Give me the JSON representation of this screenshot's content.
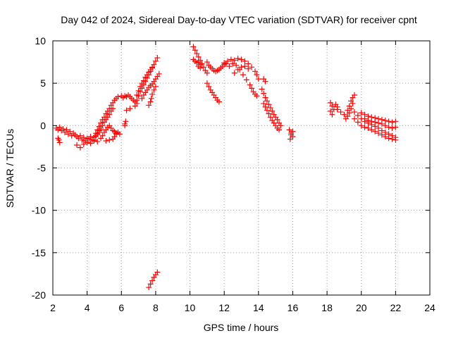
{
  "chart_data": {
    "type": "scatter",
    "title": "Day 042 of 2024, Sidereal Day-to-day VTEC variation (SDTVAR) for receiver cpnt",
    "xlabel": "GPS time / hours",
    "ylabel": "SDTVAR / TECUs",
    "xlim": [
      2,
      24
    ],
    "ylim": [
      -20,
      10
    ],
    "xticks": [
      2,
      4,
      6,
      8,
      10,
      12,
      14,
      16,
      18,
      20,
      22,
      24
    ],
    "yticks": [
      -20,
      -15,
      -10,
      -5,
      0,
      5,
      10
    ],
    "xtick_labels": [
      "2",
      "4",
      "6",
      "8",
      "10",
      "12",
      "14",
      "16",
      "18",
      "20",
      "22",
      "24"
    ],
    "ytick_labels": [
      "-20",
      "-15",
      "-10",
      "-5",
      "0",
      "5",
      "10"
    ],
    "grid": true,
    "marker": "+",
    "color": "#ff0000",
    "series": [
      {
        "name": "SDTVAR",
        "points": [
          [
            2.2,
            -0.3
          ],
          [
            2.3,
            -0.5
          ],
          [
            2.4,
            -0.2
          ],
          [
            2.5,
            -0.6
          ],
          [
            2.6,
            -0.4
          ],
          [
            2.7,
            -0.8
          ],
          [
            2.8,
            -0.5
          ],
          [
            2.9,
            -1.0
          ],
          [
            3.0,
            -0.7
          ],
          [
            3.1,
            -1.2
          ],
          [
            3.2,
            -0.9
          ],
          [
            3.3,
            -1.1
          ],
          [
            3.4,
            -1.3
          ],
          [
            3.5,
            -1.5
          ],
          [
            3.6,
            -1.2
          ],
          [
            3.7,
            -1.7
          ],
          [
            3.8,
            -1.4
          ],
          [
            3.9,
            -1.8
          ],
          [
            4.0,
            -1.5
          ],
          [
            4.1,
            -1.6
          ],
          [
            4.2,
            -1.3
          ],
          [
            4.3,
            -1.7
          ],
          [
            4.4,
            -1.4
          ],
          [
            4.5,
            -1.2
          ],
          [
            4.6,
            -1.0
          ],
          [
            4.7,
            -0.8
          ],
          [
            4.8,
            -0.5
          ],
          [
            2.3,
            -1.5
          ],
          [
            2.4,
            -2.0
          ],
          [
            2.35,
            -1.7
          ],
          [
            3.4,
            -2.3
          ],
          [
            3.6,
            -2.6
          ],
          [
            3.8,
            -2.2
          ],
          [
            4.0,
            -2.0
          ],
          [
            4.2,
            -2.1
          ],
          [
            4.4,
            -1.8
          ],
          [
            4.6,
            -1.9
          ],
          [
            4.5,
            -0.9
          ],
          [
            4.6,
            -0.5
          ],
          [
            4.7,
            -0.1
          ],
          [
            4.8,
            0.3
          ],
          [
            4.9,
            0.7
          ],
          [
            5.0,
            1.0
          ],
          [
            5.1,
            1.4
          ],
          [
            5.2,
            1.7
          ],
          [
            5.3,
            2.0
          ],
          [
            5.4,
            2.4
          ],
          [
            5.5,
            2.7
          ],
          [
            5.6,
            3.0
          ],
          [
            5.7,
            3.2
          ],
          [
            5.8,
            3.4
          ],
          [
            4.4,
            -1.7
          ],
          [
            4.5,
            -1.3
          ],
          [
            4.6,
            -1.0
          ],
          [
            4.7,
            -0.6
          ],
          [
            4.8,
            -0.3
          ],
          [
            4.9,
            0.0
          ],
          [
            5.0,
            0.4
          ],
          [
            5.1,
            0.7
          ],
          [
            5.2,
            1.0
          ],
          [
            5.3,
            1.3
          ],
          [
            5.4,
            1.7
          ],
          [
            5.5,
            2.0
          ],
          [
            4.8,
            -1.5
          ],
          [
            4.9,
            -1.2
          ],
          [
            5.0,
            -0.8
          ],
          [
            5.1,
            -0.5
          ],
          [
            5.2,
            -0.2
          ],
          [
            5.3,
            0.0
          ],
          [
            5.4,
            -0.3
          ],
          [
            5.5,
            -0.6
          ],
          [
            5.6,
            -0.7
          ],
          [
            5.7,
            -0.9
          ],
          [
            5.8,
            -0.8
          ],
          [
            5.9,
            -1.0
          ],
          [
            5.5,
            -1.6
          ],
          [
            5.6,
            -1.3
          ],
          [
            5.7,
            -1.0
          ],
          [
            5.3,
            -1.7
          ],
          [
            5.1,
            -1.8
          ],
          [
            6.0,
            3.5
          ],
          [
            6.2,
            3.5
          ],
          [
            6.3,
            3.4
          ],
          [
            6.4,
            3.6
          ],
          [
            6.1,
            3.3
          ],
          [
            6.5,
            3.4
          ],
          [
            6.6,
            3.2
          ],
          [
            6.7,
            3.0
          ],
          [
            6.8,
            2.8
          ],
          [
            6.9,
            2.6
          ],
          [
            6.8,
            2.3
          ],
          [
            6.5,
            2.0
          ],
          [
            6.3,
            1.8
          ],
          [
            6.2,
            0.2
          ],
          [
            6.25,
            0.5
          ],
          [
            6.2,
            0.0
          ],
          [
            6.9,
            3.0
          ],
          [
            7.0,
            3.5
          ],
          [
            7.1,
            4.0
          ],
          [
            7.2,
            4.4
          ],
          [
            7.3,
            4.8
          ],
          [
            7.4,
            5.2
          ],
          [
            7.5,
            5.6
          ],
          [
            7.6,
            6.0
          ],
          [
            7.7,
            6.4
          ],
          [
            7.8,
            6.8
          ],
          [
            7.9,
            7.2
          ],
          [
            8.0,
            7.6
          ],
          [
            8.1,
            8.0
          ],
          [
            6.9,
            3.6
          ],
          [
            7.0,
            4.1
          ],
          [
            7.1,
            4.6
          ],
          [
            7.2,
            5.0
          ],
          [
            7.3,
            5.3
          ],
          [
            7.4,
            5.7
          ],
          [
            7.5,
            6.0
          ],
          [
            7.6,
            6.3
          ],
          [
            7.7,
            6.6
          ],
          [
            7.8,
            6.9
          ],
          [
            7.2,
            3.2
          ],
          [
            7.3,
            3.6
          ],
          [
            7.4,
            3.9
          ],
          [
            7.5,
            4.2
          ],
          [
            7.6,
            4.5
          ],
          [
            7.7,
            4.7
          ],
          [
            7.8,
            4.9
          ],
          [
            7.9,
            5.2
          ],
          [
            8.0,
            5.5
          ],
          [
            8.1,
            5.8
          ],
          [
            8.2,
            6.1
          ],
          [
            7.6,
            2.4
          ],
          [
            7.7,
            2.8
          ],
          [
            7.75,
            3.2
          ],
          [
            7.8,
            3.7
          ],
          [
            7.9,
            4.2
          ],
          [
            8.0,
            4.6
          ],
          [
            7.6,
            -19.1
          ],
          [
            7.7,
            -18.7
          ],
          [
            7.8,
            -18.3
          ],
          [
            7.9,
            -17.9
          ],
          [
            8.0,
            -17.6
          ],
          [
            8.1,
            -17.3
          ],
          [
            10.2,
            9.3
          ],
          [
            10.3,
            8.9
          ],
          [
            10.4,
            8.5
          ],
          [
            10.5,
            8.1
          ],
          [
            10.6,
            7.7
          ],
          [
            10.7,
            7.3
          ],
          [
            10.8,
            6.9
          ],
          [
            10.9,
            6.5
          ],
          [
            11.0,
            6.2
          ],
          [
            10.5,
            7.5
          ],
          [
            10.6,
            7.2
          ],
          [
            10.2,
            7.8
          ],
          [
            10.3,
            7.6
          ],
          [
            10.4,
            7.4
          ],
          [
            10.5,
            7.0
          ],
          [
            10.6,
            6.8
          ],
          [
            11.0,
            7.5
          ],
          [
            11.1,
            7.1
          ],
          [
            11.2,
            6.9
          ],
          [
            11.3,
            6.7
          ],
          [
            11.4,
            6.5
          ],
          [
            11.5,
            6.4
          ],
          [
            11.6,
            6.5
          ],
          [
            11.7,
            6.6
          ],
          [
            11.8,
            6.8
          ],
          [
            11.9,
            7.0
          ],
          [
            12.0,
            7.2
          ],
          [
            12.1,
            7.3
          ],
          [
            11.0,
            5.0
          ],
          [
            11.1,
            4.6
          ],
          [
            11.2,
            4.2
          ],
          [
            11.3,
            3.9
          ],
          [
            11.4,
            3.6
          ],
          [
            11.5,
            3.3
          ],
          [
            11.6,
            3.0
          ],
          [
            11.7,
            2.8
          ],
          [
            12.0,
            7.4
          ],
          [
            12.2,
            7.6
          ],
          [
            12.4,
            7.8
          ],
          [
            12.6,
            7.7
          ],
          [
            12.8,
            7.9
          ],
          [
            13.0,
            7.8
          ],
          [
            13.2,
            7.6
          ],
          [
            13.4,
            7.3
          ],
          [
            13.6,
            6.9
          ],
          [
            13.8,
            6.4
          ],
          [
            13.9,
            6.0
          ],
          [
            14.0,
            5.5
          ],
          [
            12.3,
            7.0
          ],
          [
            12.5,
            7.3
          ],
          [
            12.7,
            7.1
          ],
          [
            12.9,
            6.6
          ],
          [
            13.1,
            6.0
          ],
          [
            13.3,
            5.4
          ],
          [
            13.5,
            4.8
          ],
          [
            13.6,
            4.4
          ],
          [
            13.7,
            4.0
          ],
          [
            13.8,
            3.7
          ],
          [
            13.9,
            3.5
          ],
          [
            12.6,
            6.2
          ],
          [
            12.8,
            6.6
          ],
          [
            13.0,
            6.9
          ],
          [
            13.2,
            7.0
          ],
          [
            13.4,
            6.7
          ],
          [
            14.2,
            4.3
          ],
          [
            14.3,
            3.8
          ],
          [
            14.4,
            3.3
          ],
          [
            14.5,
            2.9
          ],
          [
            14.6,
            2.5
          ],
          [
            14.7,
            2.1
          ],
          [
            14.8,
            1.7
          ],
          [
            14.9,
            1.3
          ],
          [
            15.0,
            1.0
          ],
          [
            15.1,
            0.7
          ],
          [
            15.2,
            0.3
          ],
          [
            15.3,
            0.0
          ],
          [
            14.3,
            2.6
          ],
          [
            14.4,
            2.2
          ],
          [
            14.5,
            1.8
          ],
          [
            14.6,
            1.4
          ],
          [
            14.7,
            1.0
          ],
          [
            14.8,
            0.6
          ],
          [
            14.9,
            0.3
          ],
          [
            15.0,
            0.0
          ],
          [
            15.1,
            -0.3
          ],
          [
            15.2,
            -0.5
          ],
          [
            14.4,
            5.2
          ],
          [
            14.3,
            5.5
          ],
          [
            15.8,
            -0.5
          ],
          [
            15.9,
            -0.9
          ],
          [
            16.0,
            -1.3
          ],
          [
            15.85,
            -1.6
          ],
          [
            15.9,
            -1.1
          ],
          [
            16.0,
            -0.7
          ],
          [
            18.2,
            2.7
          ],
          [
            18.3,
            2.3
          ],
          [
            18.4,
            1.9
          ],
          [
            18.5,
            2.5
          ],
          [
            18.6,
            2.2
          ],
          [
            18.2,
            1.7
          ],
          [
            18.3,
            1.3
          ],
          [
            18.6,
            1.9
          ],
          [
            18.8,
            1.6
          ],
          [
            19.0,
            1.3
          ],
          [
            19.2,
            1.8
          ],
          [
            19.3,
            2.3
          ],
          [
            19.4,
            2.9
          ],
          [
            19.5,
            3.3
          ],
          [
            19.6,
            3.6
          ],
          [
            19.5,
            2.6
          ],
          [
            19.4,
            2.0
          ],
          [
            19.3,
            1.5
          ],
          [
            19.2,
            1.1
          ],
          [
            19.1,
            0.8
          ],
          [
            19.6,
            1.6
          ],
          [
            19.8,
            1.2
          ],
          [
            20.0,
            0.8
          ],
          [
            20.2,
            0.5
          ],
          [
            20.4,
            0.3
          ],
          [
            20.6,
            0.1
          ],
          [
            20.8,
            -0.1
          ],
          [
            21.0,
            -0.3
          ],
          [
            21.2,
            -0.6
          ],
          [
            21.4,
            -0.8
          ],
          [
            21.6,
            -1.0
          ],
          [
            21.8,
            -1.2
          ],
          [
            22.0,
            -1.4
          ],
          [
            19.6,
            0.8
          ],
          [
            19.8,
            0.4
          ],
          [
            20.0,
            0.0
          ],
          [
            20.2,
            -0.2
          ],
          [
            20.4,
            -0.3
          ],
          [
            20.6,
            -0.5
          ],
          [
            20.8,
            -0.7
          ],
          [
            21.0,
            -0.9
          ],
          [
            21.2,
            -1.1
          ],
          [
            21.4,
            -1.3
          ],
          [
            21.6,
            -1.5
          ],
          [
            21.8,
            -1.6
          ],
          [
            22.0,
            -1.7
          ],
          [
            20.0,
            1.5
          ],
          [
            20.2,
            1.3
          ],
          [
            20.4,
            1.1
          ],
          [
            20.6,
            1.0
          ],
          [
            20.8,
            0.9
          ],
          [
            21.0,
            0.8
          ],
          [
            21.2,
            0.7
          ],
          [
            21.4,
            0.6
          ],
          [
            21.6,
            0.5
          ],
          [
            21.8,
            0.4
          ],
          [
            22.0,
            0.5
          ],
          [
            20.2,
            0.8
          ],
          [
            20.4,
            0.6
          ],
          [
            20.6,
            0.5
          ],
          [
            20.8,
            0.4
          ],
          [
            21.0,
            0.3
          ],
          [
            21.2,
            0.2
          ],
          [
            21.4,
            0.0
          ],
          [
            21.6,
            -0.2
          ],
          [
            21.8,
            -0.3
          ],
          [
            22.0,
            -0.2
          ]
        ]
      }
    ]
  }
}
